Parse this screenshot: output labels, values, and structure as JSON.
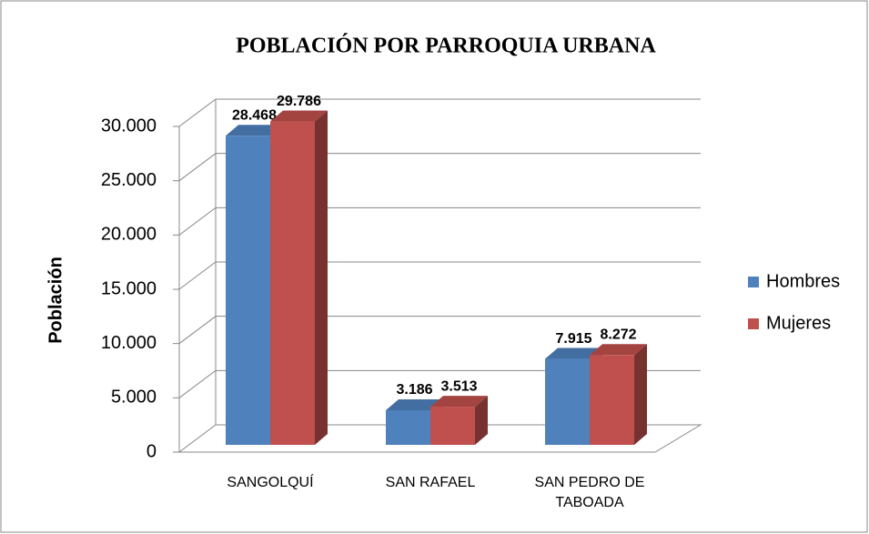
{
  "chart_data": {
    "type": "bar3d",
    "title": "POBLACIÓN POR PARROQUIA URBANA",
    "y_label": "Población",
    "categories": [
      "SANGOLQUÍ",
      "SAN RAFAEL",
      "SAN PEDRO DE TABOADA"
    ],
    "series": [
      {
        "name": "Hombres",
        "color": "#4f81bd",
        "values": [
          28468,
          3186,
          7915
        ],
        "value_labels": [
          "28.468",
          "3.186",
          "7.915"
        ]
      },
      {
        "name": "Mujeres",
        "color": "#c0504d",
        "values": [
          29786,
          3513,
          8272
        ],
        "value_labels": [
          "29.786",
          "3.513",
          "8.272"
        ]
      }
    ],
    "ylim": [
      0,
      30000
    ],
    "yticks": [
      {
        "value": 0,
        "label": "0"
      },
      {
        "value": 5000,
        "label": "5.000"
      },
      {
        "value": 10000,
        "label": "10.000"
      },
      {
        "value": 15000,
        "label": "15.000"
      },
      {
        "value": 20000,
        "label": "20.000"
      },
      {
        "value": 25000,
        "label": "25.000"
      },
      {
        "value": 30000,
        "label": "30.000"
      }
    ],
    "grid": true,
    "legend": "right"
  }
}
